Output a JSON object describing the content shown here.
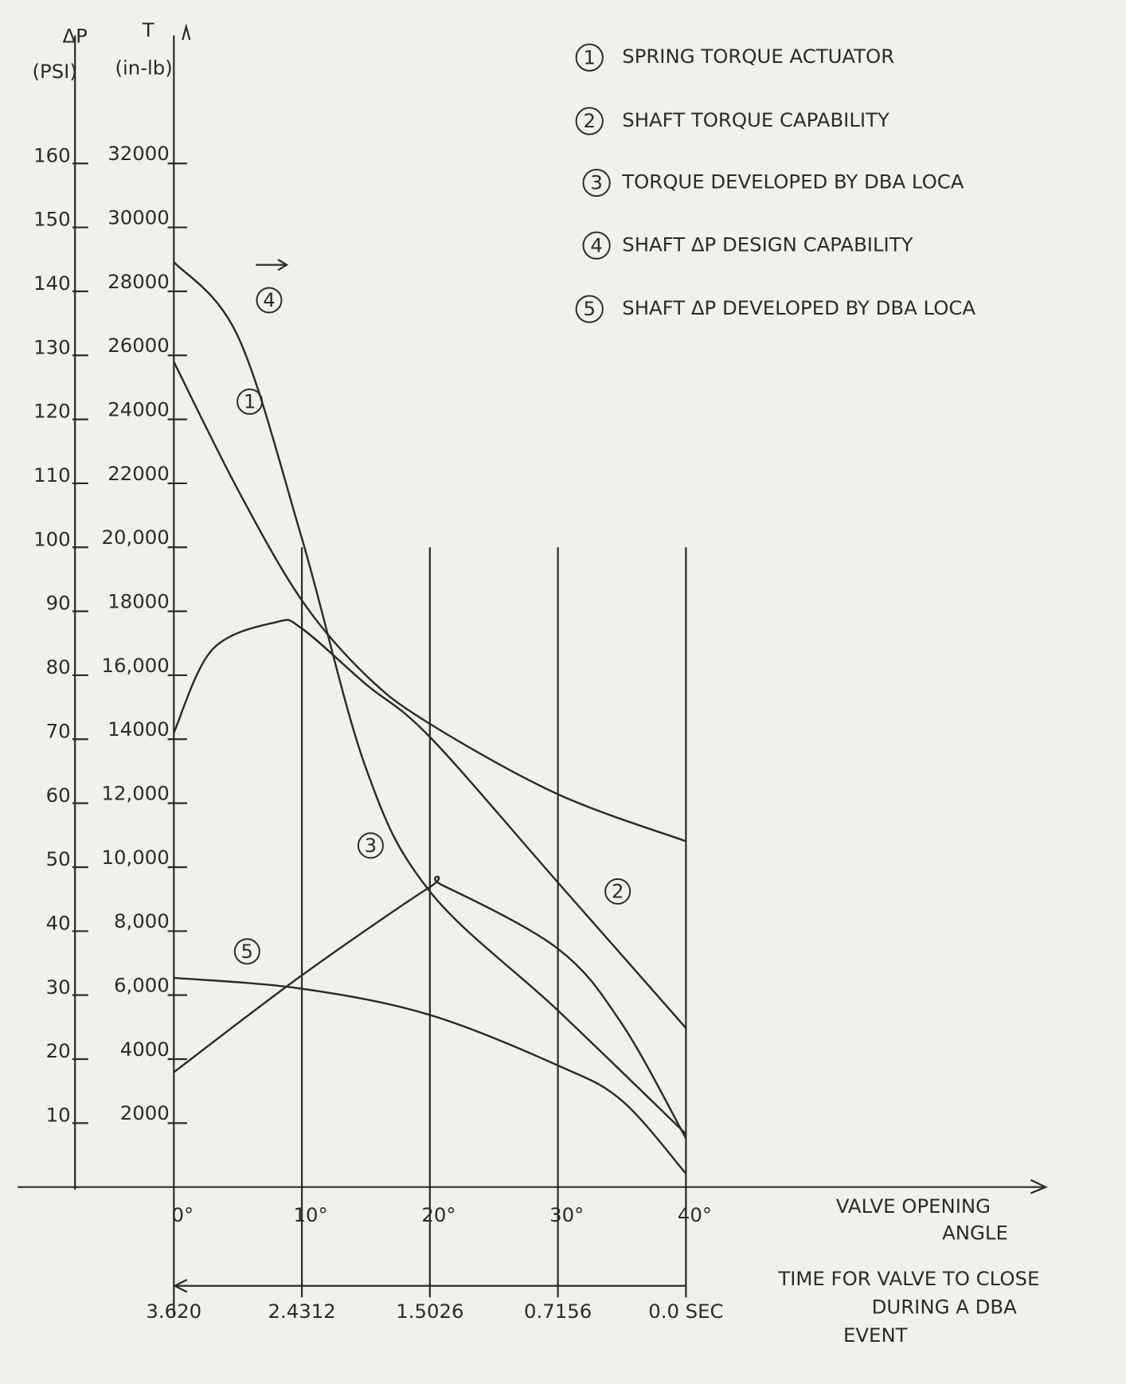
{
  "chart_data": {
    "type": "line",
    "ylabel": "ΔP",
    "yunit": "(PSI)",
    "y2label": "T",
    "y2unit": "(in-lb)",
    "xlabel": [
      "VALVE OPENING",
      "ANGLE"
    ],
    "x2label": [
      "TIME FOR VALVE TO CLOSE",
      "DURING A DBA",
      "EVENT"
    ],
    "xlim": [
      -12.2,
      68.1
    ],
    "xticks": [
      {
        "value": 0,
        "label": "0°"
      },
      {
        "value": 10,
        "label": "10°"
      },
      {
        "value": 20,
        "label": "20°"
      },
      {
        "value": 30,
        "label": "30°"
      },
      {
        "value": 40,
        "label": "40°"
      }
    ],
    "time_labels": [
      "3.620",
      "2.4312",
      "1.5026",
      "0.7156",
      "0.0 SEC"
    ],
    "ylim": [
      0,
      180
    ],
    "yticks": [
      10,
      20,
      30,
      40,
      50,
      60,
      70,
      80,
      90,
      100,
      110,
      120,
      130,
      140,
      150,
      160
    ],
    "y2lim": [
      0,
      36000
    ],
    "y2ticks": [
      2000,
      4000,
      {
        "value": 6000,
        "label": "6,000"
      },
      {
        "value": 8000,
        "label": "8,000"
      },
      {
        "value": 10000,
        "label": "10,000"
      },
      {
        "value": 12000,
        "label": "12,000"
      },
      14000,
      {
        "value": 16000,
        "label": "16,000"
      },
      18000,
      {
        "value": 20000,
        "label": "20,000"
      },
      22000,
      24000,
      26000,
      28000,
      30000,
      32000
    ],
    "series": [
      {
        "label": "1",
        "name": "SPRING TORQUE ACTUATOR",
        "color": "#2b2b2b",
        "axis": "y2",
        "x": [
          0,
          5,
          10,
          15,
          20,
          30,
          40
        ],
        "values": [
          25800,
          21800,
          18340,
          16000,
          14480,
          12280,
          10810
        ]
      },
      {
        "label": "2",
        "name": "SHAFT TORQUE CAPABILITY",
        "color": "#2b2b2b",
        "axis": "y2",
        "x": [
          0,
          3,
          8,
          10,
          15,
          20,
          30,
          40
        ],
        "values": [
          14200,
          16800,
          17660,
          17460,
          15720,
          14070,
          9520,
          4970
        ]
      },
      {
        "label": "3",
        "name": "TORQUE DEVELOPED BY DBA LOCA",
        "color": "#2b2b2b",
        "axis": "y2",
        "x": [
          0,
          10,
          20,
          21,
          30,
          35,
          40
        ],
        "values": [
          3590,
          6620,
          9380,
          9430,
          7450,
          5100,
          1520
        ]
      },
      {
        "label": "4",
        "name": "SHAFT ΔP DESIGN CAPABILITY",
        "color": "#2b2b2b",
        "axis": "y",
        "x": [
          0,
          5,
          10,
          15,
          20,
          30,
          40
        ],
        "values": [
          144.6,
          133,
          101.4,
          65.5,
          46.2,
          27.6,
          8.3
        ]
      },
      {
        "label": "5",
        "name": "SHAFT ΔP DEVELOPED BY DBA LOCA",
        "color": "#2b2b2b",
        "axis": "y",
        "x": [
          0,
          10,
          20,
          30,
          35,
          40
        ],
        "values": [
          32.7,
          31.0,
          26.9,
          19.0,
          13.5,
          2.1
        ]
      }
    ]
  }
}
